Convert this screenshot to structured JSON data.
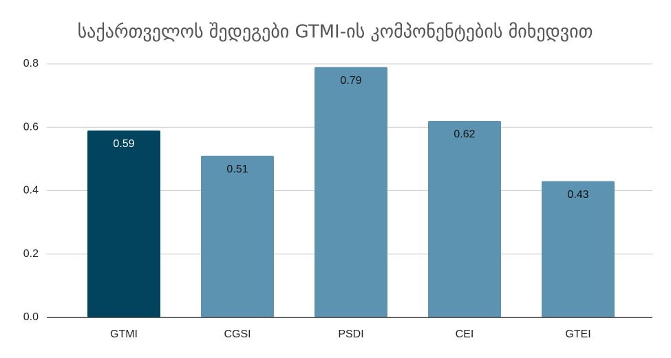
{
  "chart_data": {
    "type": "bar",
    "title": "საქართველოს შედეგები GTMI-ის კომპონენტების მიხედვით",
    "categories": [
      "GTMI",
      "CGSI",
      "PSDI",
      "CEI",
      "GTEI"
    ],
    "values": [
      0.59,
      0.51,
      0.79,
      0.62,
      0.43
    ],
    "colors": [
      "#02435e",
      "#5b93b0",
      "#5b93b0",
      "#5b93b0",
      "#5b93b0"
    ],
    "ylim": [
      0,
      0.8
    ],
    "yticks": [
      {
        "value": 0,
        "label": "0.0"
      },
      0.2,
      0.4,
      0.6,
      0.8
    ],
    "grid": true
  }
}
